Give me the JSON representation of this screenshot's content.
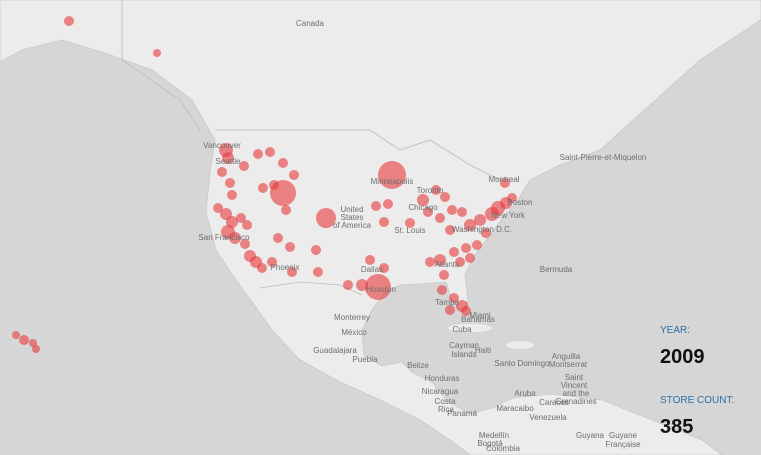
{
  "legend": {
    "year_label": "YEAR:",
    "year": 2009,
    "count_label": "STORE COUNT:",
    "store_count": 385
  },
  "map_labels": [
    "Canada",
    "Vancouver",
    "Seattle",
    "San Francisco",
    "Phoenix",
    "United",
    "States",
    "of America",
    "Minneapolis",
    "Chicago",
    "Toronto",
    "Montreal",
    "Boston",
    "New York",
    "Washington D.C.",
    "St. Louis",
    "Atlanta",
    "Dallas",
    "Houston",
    "Tampa",
    "Miami",
    "Bahamas",
    "Cuba",
    "Monterrey",
    "México",
    "Guadalajara",
    "Puebla",
    "Belize",
    "Honduras",
    "Nicaragua",
    "Costa",
    "Rica",
    "Panamá",
    "Cayman",
    "Islands",
    "Haiti",
    "Santo Domingo",
    "Anguilla",
    "Montserrat",
    "Saint",
    "Vincent",
    "and the",
    "Grenadines",
    "Aruba",
    "Maracaibo",
    "Caracas",
    "Venezuela",
    "Medellín",
    "Bogotá",
    "Colombia",
    "Guyana",
    "Guyane",
    "Française",
    "Bermuda",
    "Saint-Pierre-et-Miquelon"
  ]
}
